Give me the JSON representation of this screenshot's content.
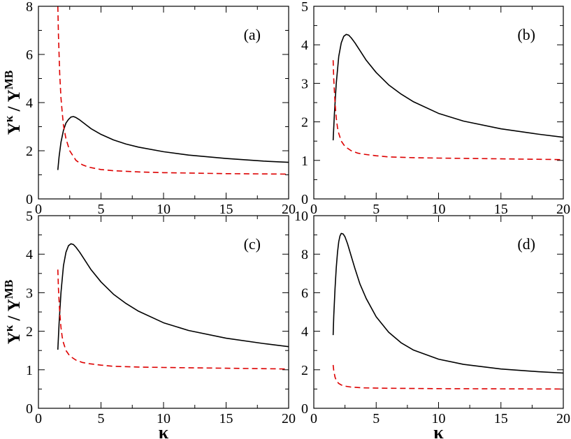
{
  "chart_data": [
    {
      "type": "line",
      "panel_label": "(a)",
      "xlim": [
        0,
        20
      ],
      "ylim": [
        0,
        8
      ],
      "xticks": [
        "0",
        "5",
        "10",
        "15",
        "20"
      ],
      "yticks": [
        "0",
        "2",
        "4",
        "6",
        "8"
      ],
      "ylabel": {
        "base": "Y",
        "sup_num": "κ",
        "sep": " / ",
        "base2": "Y",
        "sup_den": "MB"
      },
      "xlabel": "",
      "series": [
        {
          "name": "solid",
          "color": "#000000",
          "dash": "none",
          "x": [
            1.55,
            1.65,
            1.8,
            2.0,
            2.2,
            2.4,
            2.6,
            2.8,
            3.0,
            3.3,
            3.7,
            4.2,
            5.0,
            6.0,
            7.0,
            8.0,
            10.0,
            12.0,
            15.0,
            18.0,
            20.0
          ],
          "y": [
            1.2,
            1.75,
            2.35,
            2.85,
            3.15,
            3.3,
            3.4,
            3.42,
            3.38,
            3.28,
            3.12,
            2.92,
            2.68,
            2.45,
            2.28,
            2.15,
            1.96,
            1.82,
            1.68,
            1.57,
            1.52
          ]
        },
        {
          "name": "dashed",
          "color": "#dd0000",
          "dash": "8,5",
          "x": [
            1.55,
            1.6,
            1.7,
            1.8,
            1.9,
            2.0,
            2.2,
            2.5,
            3.0,
            3.5,
            4.0,
            5.0,
            6.0,
            8.0,
            10.0,
            15.0,
            20.0
          ],
          "y": [
            8.0,
            6.8,
            5.2,
            4.2,
            3.6,
            3.05,
            2.5,
            2.0,
            1.6,
            1.42,
            1.32,
            1.22,
            1.17,
            1.12,
            1.09,
            1.05,
            1.03
          ]
        }
      ]
    },
    {
      "type": "line",
      "panel_label": "(b)",
      "xlim": [
        0,
        20
      ],
      "ylim": [
        0,
        5
      ],
      "xticks": [
        "0",
        "5",
        "10",
        "15",
        "20"
      ],
      "yticks": [
        "0",
        "1",
        "2",
        "3",
        "4",
        "5"
      ],
      "ylabel": null,
      "xlabel": "",
      "series": [
        {
          "name": "solid",
          "color": "#000000",
          "dash": "none",
          "x": [
            1.55,
            1.65,
            1.8,
            2.0,
            2.2,
            2.4,
            2.6,
            2.8,
            3.0,
            3.3,
            3.7,
            4.2,
            5.0,
            6.0,
            7.0,
            8.0,
            10.0,
            12.0,
            15.0,
            18.0,
            20.0
          ],
          "y": [
            1.52,
            2.2,
            3.0,
            3.7,
            4.05,
            4.22,
            4.27,
            4.25,
            4.18,
            4.05,
            3.85,
            3.6,
            3.28,
            2.96,
            2.72,
            2.52,
            2.22,
            2.02,
            1.82,
            1.68,
            1.6
          ]
        },
        {
          "name": "dashed",
          "color": "#dd0000",
          "dash": "8,5",
          "x": [
            1.55,
            1.6,
            1.7,
            1.8,
            1.9,
            2.0,
            2.2,
            2.5,
            3.0,
            3.5,
            4.0,
            5.0,
            6.0,
            8.0,
            10.0,
            15.0,
            20.0
          ],
          "y": [
            3.6,
            3.1,
            2.5,
            2.1,
            1.85,
            1.7,
            1.5,
            1.36,
            1.25,
            1.19,
            1.16,
            1.12,
            1.09,
            1.07,
            1.06,
            1.04,
            1.02
          ]
        }
      ]
    },
    {
      "type": "line",
      "panel_label": "(c)",
      "xlim": [
        0,
        20
      ],
      "ylim": [
        0,
        5
      ],
      "xticks": [
        "0",
        "5",
        "10",
        "15",
        "20"
      ],
      "yticks": [
        "0",
        "1",
        "2",
        "3",
        "4",
        "5"
      ],
      "ylabel": {
        "base": "Y",
        "sup_num": "κ",
        "sep": " / ",
        "base2": "Y",
        "sup_den": "MB"
      },
      "xlabel": "κ",
      "series": [
        {
          "name": "solid",
          "color": "#000000",
          "dash": "none",
          "x": [
            1.55,
            1.65,
            1.8,
            2.0,
            2.2,
            2.4,
            2.6,
            2.8,
            3.0,
            3.3,
            3.7,
            4.2,
            5.0,
            6.0,
            7.0,
            8.0,
            10.0,
            12.0,
            15.0,
            18.0,
            20.0
          ],
          "y": [
            1.52,
            2.2,
            3.0,
            3.7,
            4.05,
            4.22,
            4.27,
            4.25,
            4.18,
            4.05,
            3.85,
            3.6,
            3.28,
            2.96,
            2.72,
            2.52,
            2.22,
            2.02,
            1.82,
            1.68,
            1.6
          ]
        },
        {
          "name": "dashed",
          "color": "#dd0000",
          "dash": "8,5",
          "x": [
            1.55,
            1.6,
            1.7,
            1.8,
            1.9,
            2.0,
            2.2,
            2.5,
            3.0,
            3.5,
            4.0,
            5.0,
            6.0,
            8.0,
            10.0,
            15.0,
            20.0
          ],
          "y": [
            3.6,
            3.1,
            2.5,
            2.1,
            1.85,
            1.7,
            1.5,
            1.36,
            1.25,
            1.19,
            1.16,
            1.12,
            1.09,
            1.07,
            1.06,
            1.04,
            1.02
          ]
        }
      ]
    },
    {
      "type": "line",
      "panel_label": "(d)",
      "xlim": [
        0,
        20
      ],
      "ylim": [
        0,
        10
      ],
      "xticks": [
        "0",
        "5",
        "10",
        "15",
        "20"
      ],
      "yticks": [
        "0",
        "2",
        "4",
        "6",
        "8",
        "10"
      ],
      "ylabel": null,
      "xlabel": "κ",
      "series": [
        {
          "name": "solid",
          "color": "#000000",
          "dash": "none",
          "x": [
            1.55,
            1.6,
            1.7,
            1.8,
            1.9,
            2.0,
            2.1,
            2.2,
            2.35,
            2.5,
            2.7,
            3.0,
            3.3,
            3.7,
            4.2,
            5.0,
            6.0,
            7.0,
            8.0,
            10.0,
            12.0,
            15.0,
            18.0,
            20.0
          ],
          "y": [
            3.8,
            4.8,
            6.2,
            7.3,
            8.1,
            8.65,
            8.95,
            9.08,
            9.05,
            8.9,
            8.55,
            7.9,
            7.25,
            6.45,
            5.7,
            4.75,
            3.95,
            3.4,
            3.02,
            2.55,
            2.28,
            2.04,
            1.9,
            1.83
          ]
        },
        {
          "name": "dashed",
          "color": "#dd0000",
          "dash": "8,5",
          "x": [
            1.55,
            1.6,
            1.7,
            1.8,
            1.9,
            2.0,
            2.2,
            2.5,
            3.0,
            3.5,
            4.0,
            5.0,
            6.0,
            8.0,
            10.0,
            15.0,
            20.0
          ],
          "y": [
            2.25,
            1.95,
            1.62,
            1.45,
            1.36,
            1.29,
            1.21,
            1.15,
            1.1,
            1.08,
            1.06,
            1.05,
            1.04,
            1.03,
            1.02,
            1.01,
            1.0
          ]
        }
      ]
    }
  ]
}
